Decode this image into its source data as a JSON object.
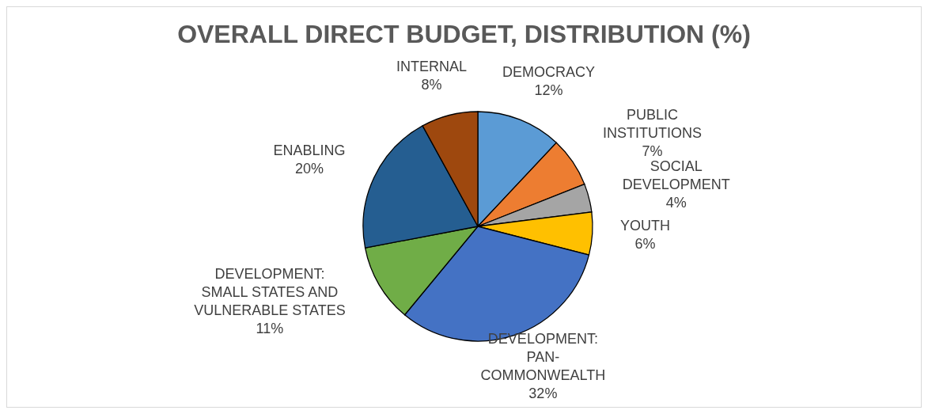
{
  "chart_data": {
    "type": "pie",
    "title": "OVERALL DIRECT BUDGET, DISTRIBUTION (%)",
    "categories": [
      "DEMOCRACY",
      "PUBLIC INSTITUTIONS",
      "SOCIAL DEVELOPMENT",
      "YOUTH",
      "DEVELOPMENT: PAN-COMMONWEALTH",
      "DEVELOPMENT: SMALL STATES AND VULNERABLE STATES",
      "ENABLING",
      "INTERNAL"
    ],
    "values": [
      12,
      7,
      4,
      6,
      32,
      11,
      20,
      8
    ],
    "value_labels": [
      "12%",
      "7%",
      "4%",
      "6%",
      "32%",
      "11%",
      "20%",
      "8%"
    ],
    "colors": [
      "#5b9bd5",
      "#ed7d31",
      "#a5a5a5",
      "#ffc000",
      "#4472c4",
      "#70ad47",
      "#255e91",
      "#9e480e"
    ]
  }
}
